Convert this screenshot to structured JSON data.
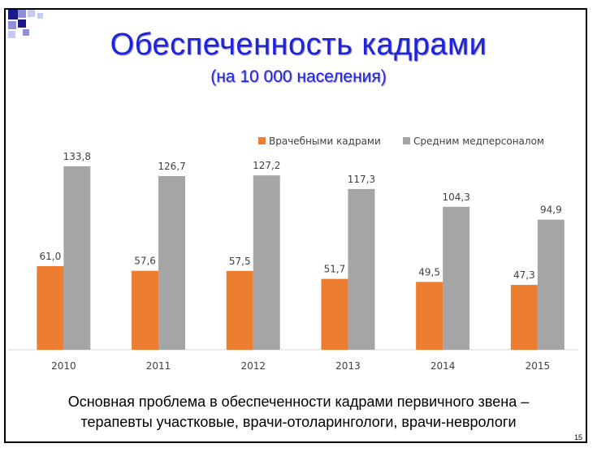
{
  "slide": {
    "title": "Обеспеченность кадрами",
    "subtitle": "(на 10 000 населения)",
    "note_line1": "Основная проблема в обеспеченности кадрами первичного звена –",
    "note_line2": "терапевты участковые, врачи-отоларингологи, врачи-неврологи",
    "page_number": "15"
  },
  "chart_data": {
    "type": "bar",
    "categories": [
      "2010",
      "2011",
      "2012",
      "2013",
      "2014",
      "2015"
    ],
    "series": [
      {
        "name": "Врачебными кадрами",
        "color": "#ed7d31",
        "values": [
          61.0,
          57.6,
          57.5,
          51.7,
          49.5,
          47.3
        ],
        "labels": [
          "61,0",
          "57,6",
          "57,5",
          "51,7",
          "49,5",
          "47,3"
        ]
      },
      {
        "name": "Средним медперсоналом",
        "color": "#a5a5a5",
        "values": [
          133.8,
          126.7,
          127.2,
          117.3,
          104.3,
          94.9
        ],
        "labels": [
          "133,8",
          "126,7",
          "127,2",
          "117,3",
          "104,3",
          "94,9"
        ]
      }
    ],
    "ylim": [
      0,
      140
    ],
    "grid": false,
    "legend": "top-right"
  }
}
